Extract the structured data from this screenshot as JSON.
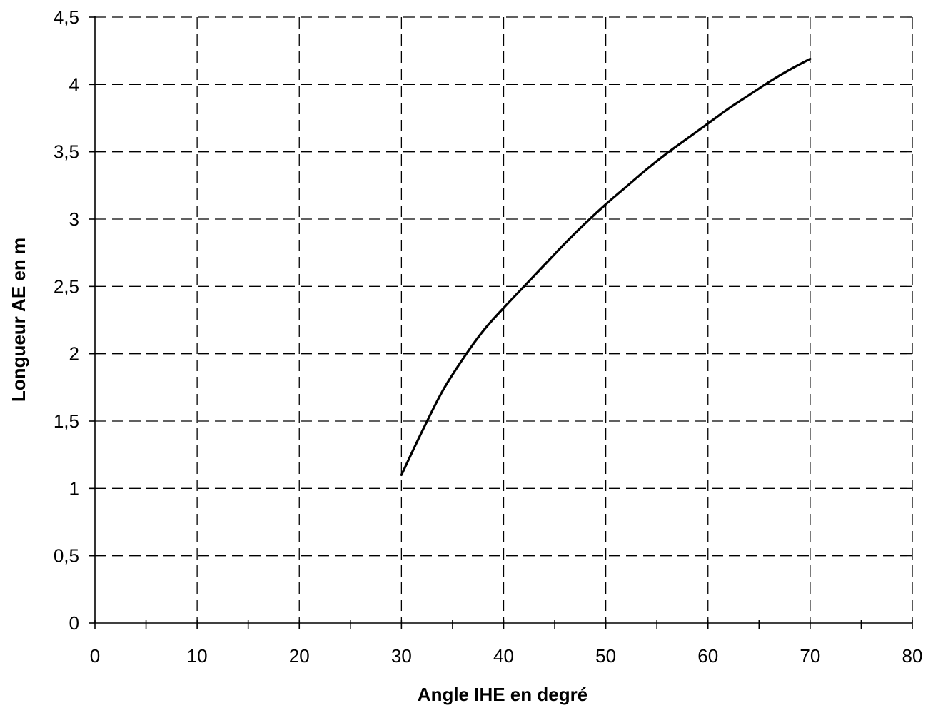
{
  "chart_data": {
    "type": "line",
    "title": "",
    "xlabel": "Angle IHE en degré",
    "ylabel": "Longueur AE en m",
    "xlim": [
      0,
      80
    ],
    "ylim": [
      0,
      4.5
    ],
    "x_ticks": [
      0,
      10,
      20,
      30,
      40,
      50,
      60,
      70,
      80
    ],
    "x_tick_labels": [
      "0",
      "10",
      "20",
      "30",
      "40",
      "50",
      "60",
      "70",
      "80"
    ],
    "y_ticks": [
      0,
      0.5,
      1,
      1.5,
      2,
      2.5,
      3,
      3.5,
      4,
      4.5
    ],
    "y_tick_labels": [
      "0",
      "0,5",
      "1",
      "1,5",
      "2",
      "2,5",
      "3",
      "3,5",
      "4",
      "4,5"
    ],
    "grid": true,
    "legend": "none",
    "series": [
      {
        "color": "#000000",
        "x": [
          30,
          32,
          34,
          36,
          38,
          40,
          42,
          44,
          46,
          48,
          50,
          52,
          54,
          56,
          58,
          60,
          62,
          64,
          66,
          68,
          70
        ],
        "y": [
          1.1,
          1.42,
          1.72,
          1.96,
          2.17,
          2.34,
          2.5,
          2.66,
          2.82,
          2.97,
          3.11,
          3.24,
          3.37,
          3.49,
          3.6,
          3.71,
          3.82,
          3.92,
          4.02,
          4.11,
          4.19
        ]
      }
    ]
  }
}
